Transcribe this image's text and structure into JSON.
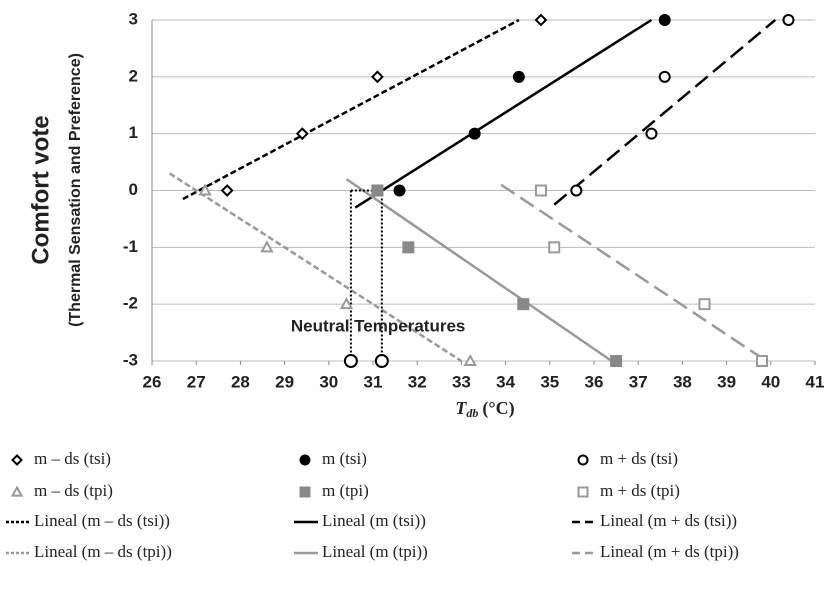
{
  "chart_data": {
    "type": "scatter",
    "y_label": [
      "Comfort vote",
      "(Thermal Sensation and Preference)"
    ],
    "x_label": {
      "symbol": "T",
      "subscript": "db",
      "unit": "(°C)"
    },
    "xlim": [
      26,
      41
    ],
    "xticks": [
      26,
      27,
      28,
      29,
      30,
      31,
      32,
      33,
      34,
      35,
      36,
      37,
      38,
      39,
      40,
      41
    ],
    "ylim": [
      -3,
      3
    ],
    "yticks": [
      -3,
      -2,
      -1,
      0,
      1,
      2,
      3
    ],
    "grid": true,
    "series": [
      {
        "name": "m – ds (tsi)",
        "color": "#000000",
        "marker": "diamond-open",
        "x": [
          27.7,
          29.4,
          31.1,
          34.8
        ],
        "values": [
          0,
          1,
          2,
          3
        ]
      },
      {
        "name": "m (tsi)",
        "color": "#000000",
        "marker": "circle-filled",
        "x": [
          31.6,
          33.3,
          34.3,
          37.6
        ],
        "values": [
          0,
          1,
          2,
          3
        ]
      },
      {
        "name": "m + ds (tsi)",
        "color": "#000000",
        "marker": "circle-open",
        "x": [
          35.6,
          37.3,
          37.6,
          40.4
        ],
        "values": [
          0,
          1,
          2,
          3
        ]
      },
      {
        "name": "m – ds (tpi)",
        "color": "#999999",
        "marker": "triangle-open",
        "x": [
          27.2,
          28.6,
          30.4,
          33.2
        ],
        "values": [
          0,
          -1,
          -2,
          -3
        ]
      },
      {
        "name": "m (tpi)",
        "color": "#888888",
        "marker": "square-filled",
        "x": [
          31.1,
          31.8,
          34.4,
          36.5
        ],
        "values": [
          0,
          -1,
          -2,
          -3
        ]
      },
      {
        "name": "m + ds (tpi)",
        "color": "#999999",
        "marker": "square-open",
        "x": [
          34.8,
          35.1,
          38.5,
          39.8
        ],
        "values": [
          0,
          -1,
          -2,
          -3
        ]
      }
    ],
    "trendlines": [
      {
        "name": "Lineal (m – ds (tsi))",
        "color": "#000000",
        "dash": "short",
        "x": [
          26.7,
          34.3
        ],
        "values": [
          -0.15,
          3
        ]
      },
      {
        "name": "Lineal (m (tsi))",
        "color": "#000000",
        "dash": "solid",
        "x": [
          30.6,
          37.3
        ],
        "values": [
          -0.3,
          3
        ]
      },
      {
        "name": "Lineal (m + ds (tsi))",
        "color": "#000000",
        "dash": "long",
        "x": [
          35.1,
          40.1
        ],
        "values": [
          -0.25,
          3
        ]
      },
      {
        "name": "Lineal (m – ds (tpi))",
        "color": "#999999",
        "dash": "short",
        "x": [
          26.4,
          33
        ],
        "values": [
          0.3,
          -3
        ]
      },
      {
        "name": "Lineal (m (tpi))",
        "color": "#999999",
        "dash": "solid",
        "x": [
          30.4,
          36.4
        ],
        "values": [
          0.2,
          -3
        ]
      },
      {
        "name": "Lineal (m + ds (tpi))",
        "color": "#999999",
        "dash": "long",
        "x": [
          33.9,
          39.9
        ],
        "values": [
          0.1,
          -3
        ]
      }
    ],
    "neutral_temperatures": {
      "label": "Neutral Temperatures",
      "x": [
        30.5,
        31.2
      ],
      "values": [
        0,
        -3
      ]
    }
  }
}
